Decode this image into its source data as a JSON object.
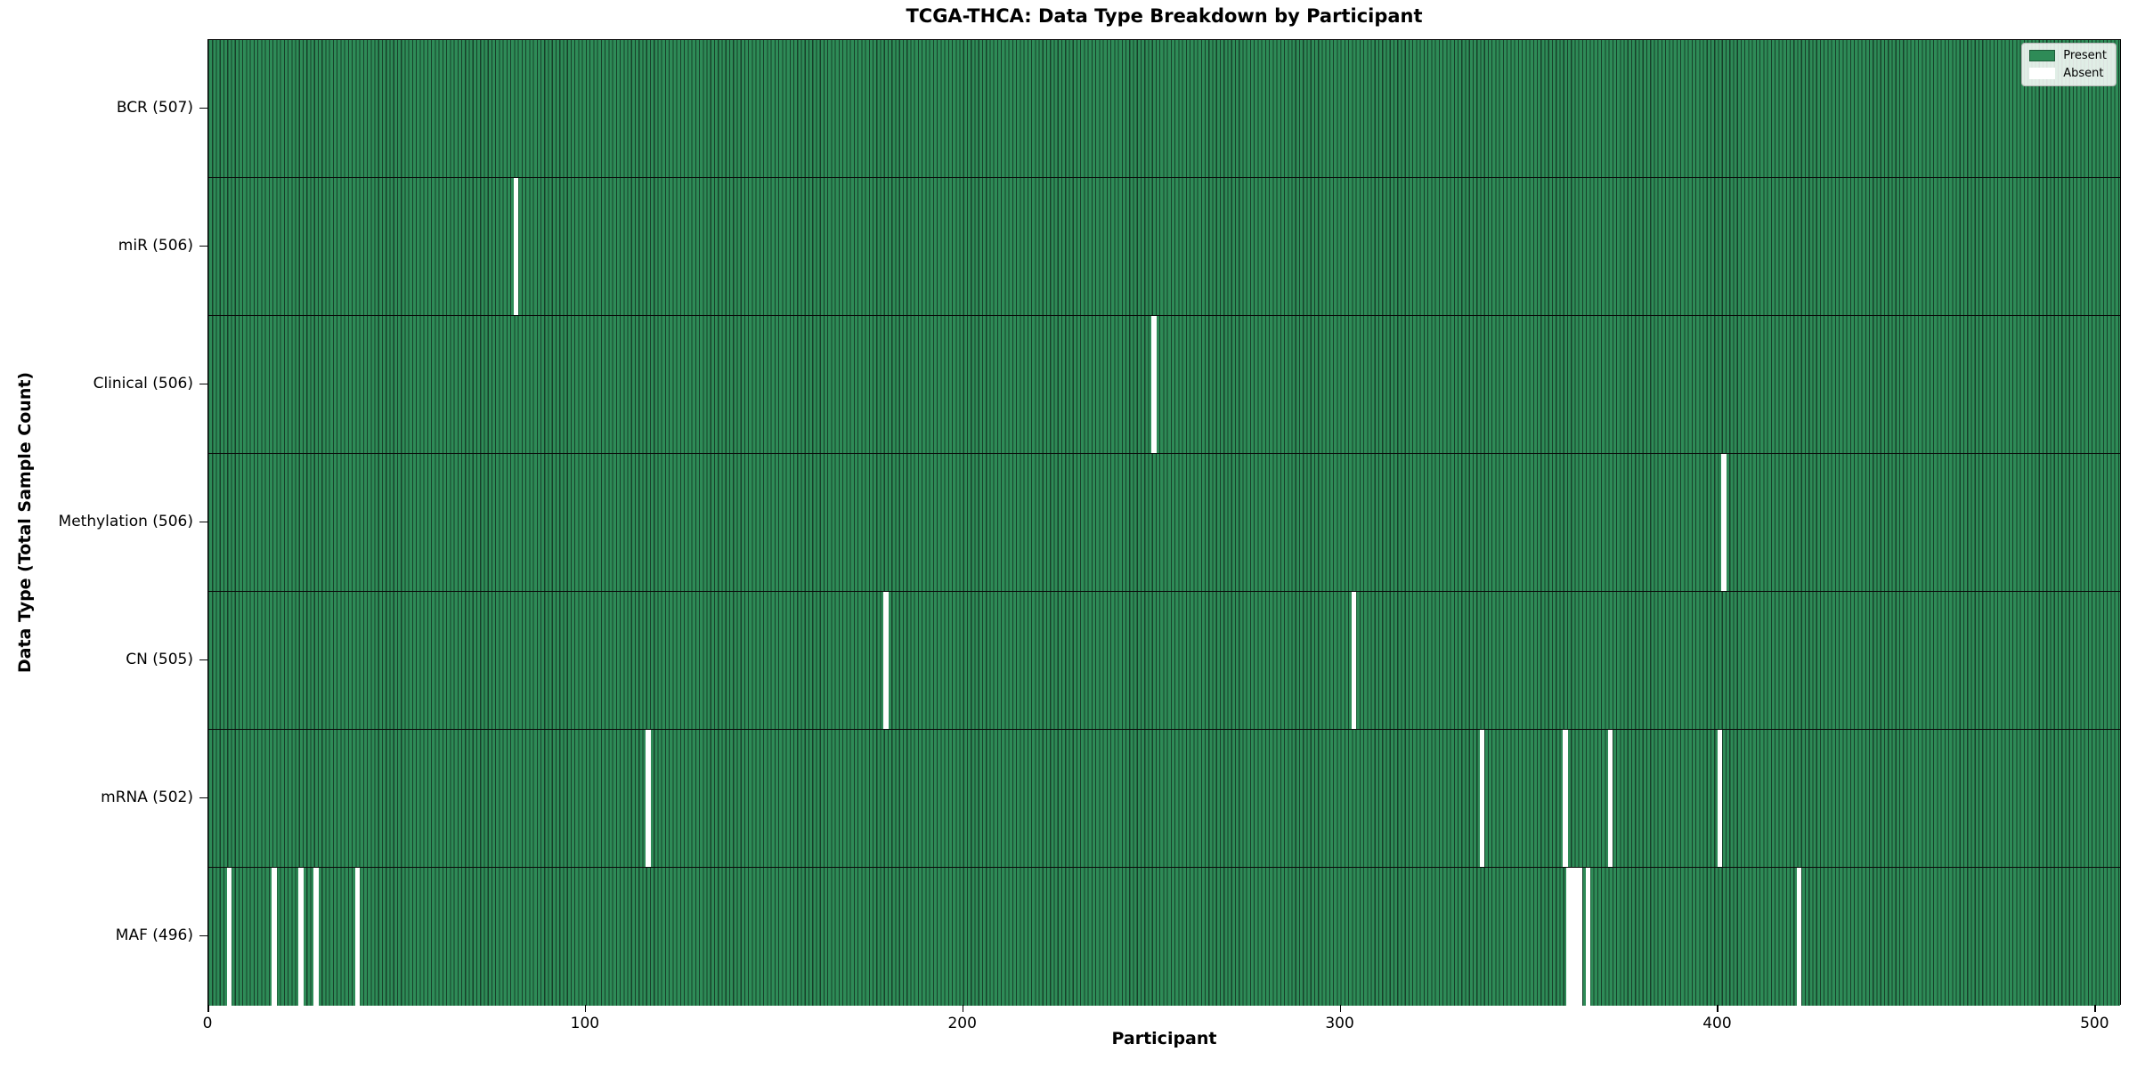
{
  "colors": {
    "present_fill": "#2e8b57",
    "bar_edge": "#17402a",
    "absent_fill": "#ffffff",
    "plot_background": "#ffffff",
    "border": "#000000"
  },
  "legend": {
    "entries": [
      {
        "name": "present",
        "label": "Present",
        "color": "#2e8b57"
      },
      {
        "name": "absent",
        "label": "Absent",
        "color": "#ffffff"
      }
    ]
  },
  "chart_data": {
    "type": "heatmap",
    "title": "TCGA-THCA: Data Type Breakdown by Participant",
    "xlabel": "Participant",
    "ylabel": "Data Type (Total Sample Count)",
    "x_ticks": [
      0,
      100,
      200,
      300,
      400,
      500
    ],
    "x_range": [
      0,
      507
    ],
    "n_participants": 507,
    "grid": false,
    "legend_position": "upper right",
    "value_encoding": {
      "present": "#2e8b57",
      "absent": "#ffffff"
    },
    "rows": [
      {
        "label": "BCR (507)",
        "data_type": "BCR",
        "total_samples": 507,
        "absent_participants": []
      },
      {
        "label": "miR (506)",
        "data_type": "miR",
        "total_samples": 506,
        "absent_participants": [
          81
        ]
      },
      {
        "label": "Clinical (506)",
        "data_type": "Clinical",
        "total_samples": 506,
        "absent_participants": [
          250
        ]
      },
      {
        "label": "Methylation (506)",
        "data_type": "Methylation",
        "total_samples": 506,
        "absent_participants": [
          401
        ]
      },
      {
        "label": "CN (505)",
        "data_type": "CN",
        "total_samples": 505,
        "absent_participants": [
          179,
          303
        ]
      },
      {
        "label": "mRNA (502)",
        "data_type": "mRNA",
        "total_samples": 502,
        "absent_participants": [
          116,
          337,
          359,
          371,
          400
        ]
      },
      {
        "label": "MAF (496)",
        "data_type": "MAF",
        "total_samples": 496,
        "absent_participants": [
          5,
          17,
          24,
          28,
          39,
          360,
          361,
          362,
          363,
          365,
          421
        ]
      }
    ]
  }
}
